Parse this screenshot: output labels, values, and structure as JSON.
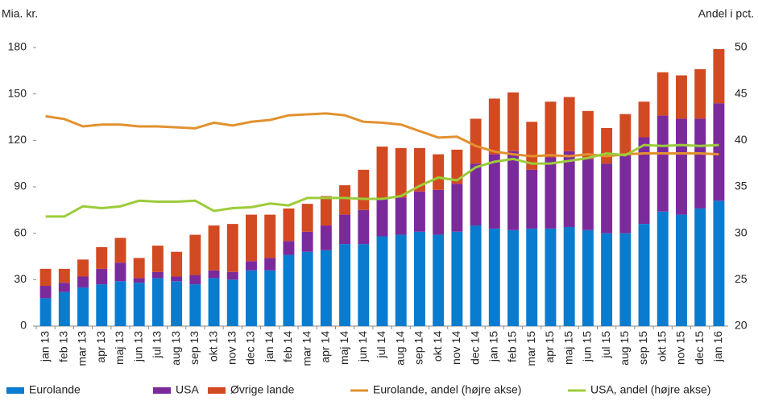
{
  "chart_data": {
    "type": "bar",
    "stacked": true,
    "y_label": "Mia. kr.",
    "y2_label": "Andel i pct.",
    "categories": [
      "jan 13",
      "feb 13",
      "mar 13",
      "apr 13",
      "maj 13",
      "jun 13",
      "jul 13",
      "aug 13",
      "sep 13",
      "okt 13",
      "nov 13",
      "dec 13",
      "jan 14",
      "feb 14",
      "mar 14",
      "apr 14",
      "maj 14",
      "jun 14",
      "jul 14",
      "aug 14",
      "sep 14",
      "okt 14",
      "nov 14",
      "dec 14",
      "jan 15",
      "feb 15",
      "mar 15",
      "apr 15",
      "maj 15",
      "jun 15",
      "jul 15",
      "aug 15",
      "sep 15",
      "okt 15",
      "nov 15",
      "dec 15",
      "jan 16"
    ],
    "ylim": [
      0,
      180
    ],
    "yticks": [
      0,
      30,
      60,
      90,
      120,
      150,
      180
    ],
    "y2lim": [
      20,
      50
    ],
    "y2ticks": [
      20,
      25,
      30,
      35,
      40,
      45,
      50
    ],
    "series": [
      {
        "name": "Eurolande",
        "type": "bar",
        "color": "#0a7ccf",
        "values": [
          18,
          22,
          25,
          27,
          29,
          28,
          31,
          29,
          27,
          31,
          30,
          36,
          36,
          46,
          48,
          49,
          53,
          53,
          58,
          59,
          61,
          59,
          61,
          65,
          63,
          62,
          63,
          63,
          64,
          62,
          60,
          60,
          66,
          74,
          72,
          76,
          81
        ]
      },
      {
        "name": "USA",
        "type": "bar",
        "color": "#7b2a9c",
        "values": [
          8,
          6,
          7,
          10,
          12,
          3,
          4,
          3,
          6,
          5,
          5,
          6,
          8,
          9,
          13,
          16,
          19,
          22,
          24,
          24,
          26,
          29,
          31,
          40,
          48,
          51,
          38,
          46,
          49,
          46,
          45,
          51,
          56,
          62,
          62,
          58,
          63
        ]
      },
      {
        "name": "Øvrige lande",
        "type": "bar",
        "color": "#d24a22",
        "values": [
          11,
          9,
          11,
          14,
          16,
          13,
          17,
          16,
          26,
          29,
          31,
          30,
          28,
          21,
          18,
          19,
          19,
          26,
          34,
          32,
          28,
          23,
          22,
          29,
          36,
          38,
          31,
          36,
          35,
          31,
          23,
          26,
          23,
          28,
          28,
          32,
          35
        ]
      },
      {
        "name": "Eurolande, andel (højre akse)",
        "type": "line",
        "axis": "y2",
        "color": "#e2912f",
        "values": [
          42.6,
          42.3,
          41.5,
          41.7,
          41.7,
          41.5,
          41.5,
          41.4,
          41.3,
          41.9,
          41.6,
          42.0,
          42.2,
          42.7,
          42.8,
          42.9,
          42.7,
          42.0,
          41.9,
          41.7,
          41.0,
          40.3,
          40.4,
          39.4,
          38.8,
          38.5,
          38.3,
          38.4,
          38.3,
          38.5,
          38.3,
          38.5,
          38.6,
          38.6,
          38.6,
          38.6,
          38.5
        ]
      },
      {
        "name": "USA, andel (højre akse)",
        "type": "line",
        "axis": "y2",
        "color": "#9ccc3a",
        "values": [
          31.8,
          31.8,
          32.9,
          32.7,
          32.9,
          33.5,
          33.4,
          33.4,
          33.5,
          32.4,
          32.7,
          32.8,
          33.2,
          33.0,
          33.8,
          33.8,
          33.8,
          33.7,
          33.7,
          34.0,
          35.1,
          36.0,
          35.7,
          37.1,
          37.7,
          38.0,
          37.5,
          37.5,
          37.8,
          38.1,
          38.6,
          38.4,
          39.5,
          39.4,
          39.5,
          39.4,
          39.5
        ]
      }
    ]
  }
}
